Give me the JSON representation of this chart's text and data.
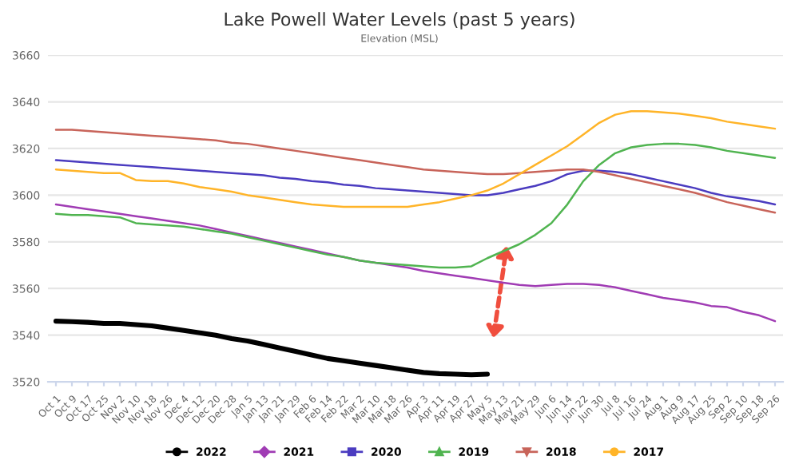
{
  "chart_data": {
    "type": "line",
    "title": "Lake Powell Water Levels (past 5 years)",
    "subtitle": "Elevation (MSL)",
    "categories": [
      "Oct 1",
      "Oct 9",
      "Oct 17",
      "Oct 25",
      "Nov 2",
      "Nov 10",
      "Nov 18",
      "Nov 26",
      "Dec 4",
      "Dec 12",
      "Dec 20",
      "Dec 28",
      "Jan 5",
      "Jan 13",
      "Jan 21",
      "Jan 29",
      "Feb 6",
      "Feb 14",
      "Feb 22",
      "Mar 2",
      "Mar 10",
      "Mar 18",
      "Mar 26",
      "Apr 3",
      "Apr 11",
      "Apr 19",
      "Apr 27",
      "May 5",
      "May 13",
      "May 21",
      "May 29",
      "Jun 6",
      "Jun 14",
      "Jun 22",
      "Jun 30",
      "Jul 8",
      "Jul 16",
      "Jul 24",
      "Aug 1",
      "Aug 9",
      "Aug 17",
      "Aug 25",
      "Sep 2",
      "Sep 10",
      "Sep 18",
      "Sep 26"
    ],
    "series": [
      {
        "name": "2022",
        "color": "#000000",
        "values": [
          3546,
          3545.8,
          3545.5,
          3545,
          3545,
          3544.5,
          3544,
          3543,
          3542,
          3541,
          3540,
          3538.5,
          3537.5,
          3536,
          3534.5,
          3533,
          3531.5,
          3530,
          3529,
          3528,
          3527,
          3526,
          3525,
          3524,
          3523.5,
          3523.3,
          3523,
          3523.3,
          null,
          null,
          null,
          null,
          null,
          null,
          null,
          null,
          null,
          null,
          null,
          null,
          null,
          null,
          null,
          null,
          null,
          null
        ]
      },
      {
        "name": "2021",
        "color": "#a03cb4",
        "values": [
          3596,
          3595,
          3594,
          3593,
          3592,
          3591,
          3590,
          3589,
          3588,
          3587,
          3585.5,
          3584,
          3582.5,
          3581,
          3579.5,
          3578,
          3576.5,
          3575,
          3573.5,
          3572,
          3571,
          3570,
          3569,
          3567.5,
          3566.5,
          3565.5,
          3564.5,
          3563.5,
          3562.5,
          3561.5,
          3561,
          3561.5,
          3562,
          3562,
          3561.5,
          3560.5,
          3559,
          3557.5,
          3556,
          3555,
          3554,
          3552.5,
          3552,
          3550,
          3548.5,
          3546
        ]
      },
      {
        "name": "2020",
        "color": "#4b3cc0",
        "values": [
          3615,
          3614.5,
          3614,
          3613.5,
          3613,
          3612.5,
          3612,
          3611.5,
          3611,
          3610.5,
          3610,
          3609.5,
          3609,
          3608.5,
          3607.5,
          3607,
          3606,
          3605.5,
          3604.5,
          3604,
          3603,
          3602.5,
          3602,
          3601.5,
          3601,
          3600.5,
          3600,
          3600,
          3601,
          3602.5,
          3604,
          3606,
          3609,
          3610.5,
          3610.5,
          3610,
          3609,
          3607.5,
          3606,
          3604.5,
          3603,
          3601,
          3599.5,
          3598.5,
          3597.5,
          3596
        ]
      },
      {
        "name": "2019",
        "color": "#50b450",
        "values": [
          3592,
          3591.5,
          3591.5,
          3591,
          3590.5,
          3588,
          3587.5,
          3587,
          3586.5,
          3585.5,
          3584.5,
          3583.5,
          3582,
          3580.5,
          3579,
          3577.5,
          3576,
          3574.5,
          3573.5,
          3572,
          3571,
          3570.5,
          3570,
          3569.5,
          3569,
          3569,
          3569.5,
          3573,
          3576,
          3579,
          3583,
          3588,
          3596,
          3606,
          3613,
          3618,
          3620.5,
          3621.5,
          3622,
          3622,
          3621.5,
          3620.5,
          3619,
          3618,
          3617,
          3616
        ]
      },
      {
        "name": "2018",
        "color": "#c8645a",
        "values": [
          3628,
          3628,
          3627.5,
          3627,
          3626.5,
          3626,
          3625.5,
          3625,
          3624.5,
          3624,
          3623.5,
          3622.5,
          3622,
          3621,
          3620,
          3619,
          3618,
          3617,
          3616,
          3615,
          3614,
          3613,
          3612,
          3611,
          3610.5,
          3610,
          3609.5,
          3609,
          3609,
          3609.5,
          3610,
          3610.5,
          3611,
          3611,
          3610,
          3608.5,
          3607,
          3605.5,
          3604,
          3602.5,
          3601,
          3599,
          3597,
          3595.5,
          3594,
          3592.5
        ]
      },
      {
        "name": "2017",
        "color": "#ffb428",
        "values": [
          3611,
          3610.5,
          3610,
          3609.5,
          3609.5,
          3606.5,
          3606,
          3606,
          3605,
          3603.5,
          3602.5,
          3601.5,
          3600,
          3599,
          3598,
          3597,
          3596,
          3595.5,
          3595,
          3595,
          3595,
          3595,
          3595,
          3596,
          3597,
          3598.5,
          3600,
          3602,
          3605,
          3609,
          3613,
          3617,
          3621,
          3626,
          3631,
          3634.5,
          3636,
          3636,
          3635.5,
          3635,
          3634,
          3633,
          3631.5,
          3630.5,
          3629.5,
          3628.5
        ]
      }
    ],
    "ylim": [
      3520,
      3660
    ],
    "yticks": [
      3520,
      3540,
      3560,
      3580,
      3600,
      3620,
      3640,
      3660
    ],
    "grid": "y",
    "legend": "bottom"
  }
}
